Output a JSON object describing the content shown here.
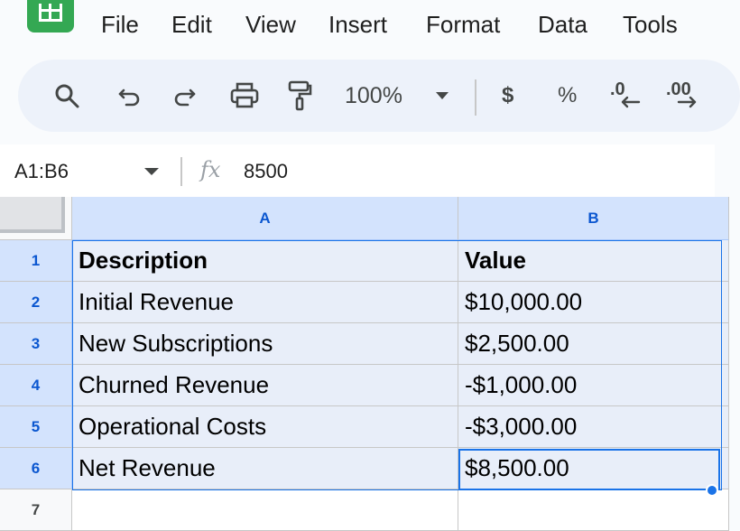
{
  "menu": {
    "items": [
      "File",
      "Edit",
      "View",
      "Insert",
      "Format",
      "Data",
      "Tools"
    ]
  },
  "toolbar": {
    "zoom": "100%",
    "currency_label": "$",
    "percent_label": "%",
    "decrease_decimal_label": ".0",
    "increase_decimal_label": ".00"
  },
  "formula_bar": {
    "name_box": "A1:B6",
    "fx_label": "fx",
    "value": "8500"
  },
  "grid": {
    "columns": [
      "A",
      "B"
    ],
    "rows": [
      {
        "num": "1",
        "a": "Description",
        "b": "Value"
      },
      {
        "num": "2",
        "a": "Initial Revenue",
        "b": "$10,000.00"
      },
      {
        "num": "3",
        "a": "New Subscriptions",
        "b": "$2,500.00"
      },
      {
        "num": "4",
        "a": "Churned Revenue",
        "b": "-$1,000.00"
      },
      {
        "num": "5",
        "a": "Operational Costs",
        "b": "-$3,000.00"
      },
      {
        "num": "6",
        "a": "Net Revenue",
        "b": "$8,500.00"
      },
      {
        "num": "7",
        "a": "",
        "b": ""
      }
    ]
  },
  "colors": {
    "brand": "#34a853",
    "selection_fill": "#e8eef9",
    "header_selected": "#d3e3fd",
    "accent": "#1a73e8"
  },
  "icons": [
    "sheets-logo-icon",
    "search-icon",
    "undo-icon",
    "redo-icon",
    "print-icon",
    "paint-format-icon",
    "chevron-down-icon",
    "function-icon"
  ]
}
